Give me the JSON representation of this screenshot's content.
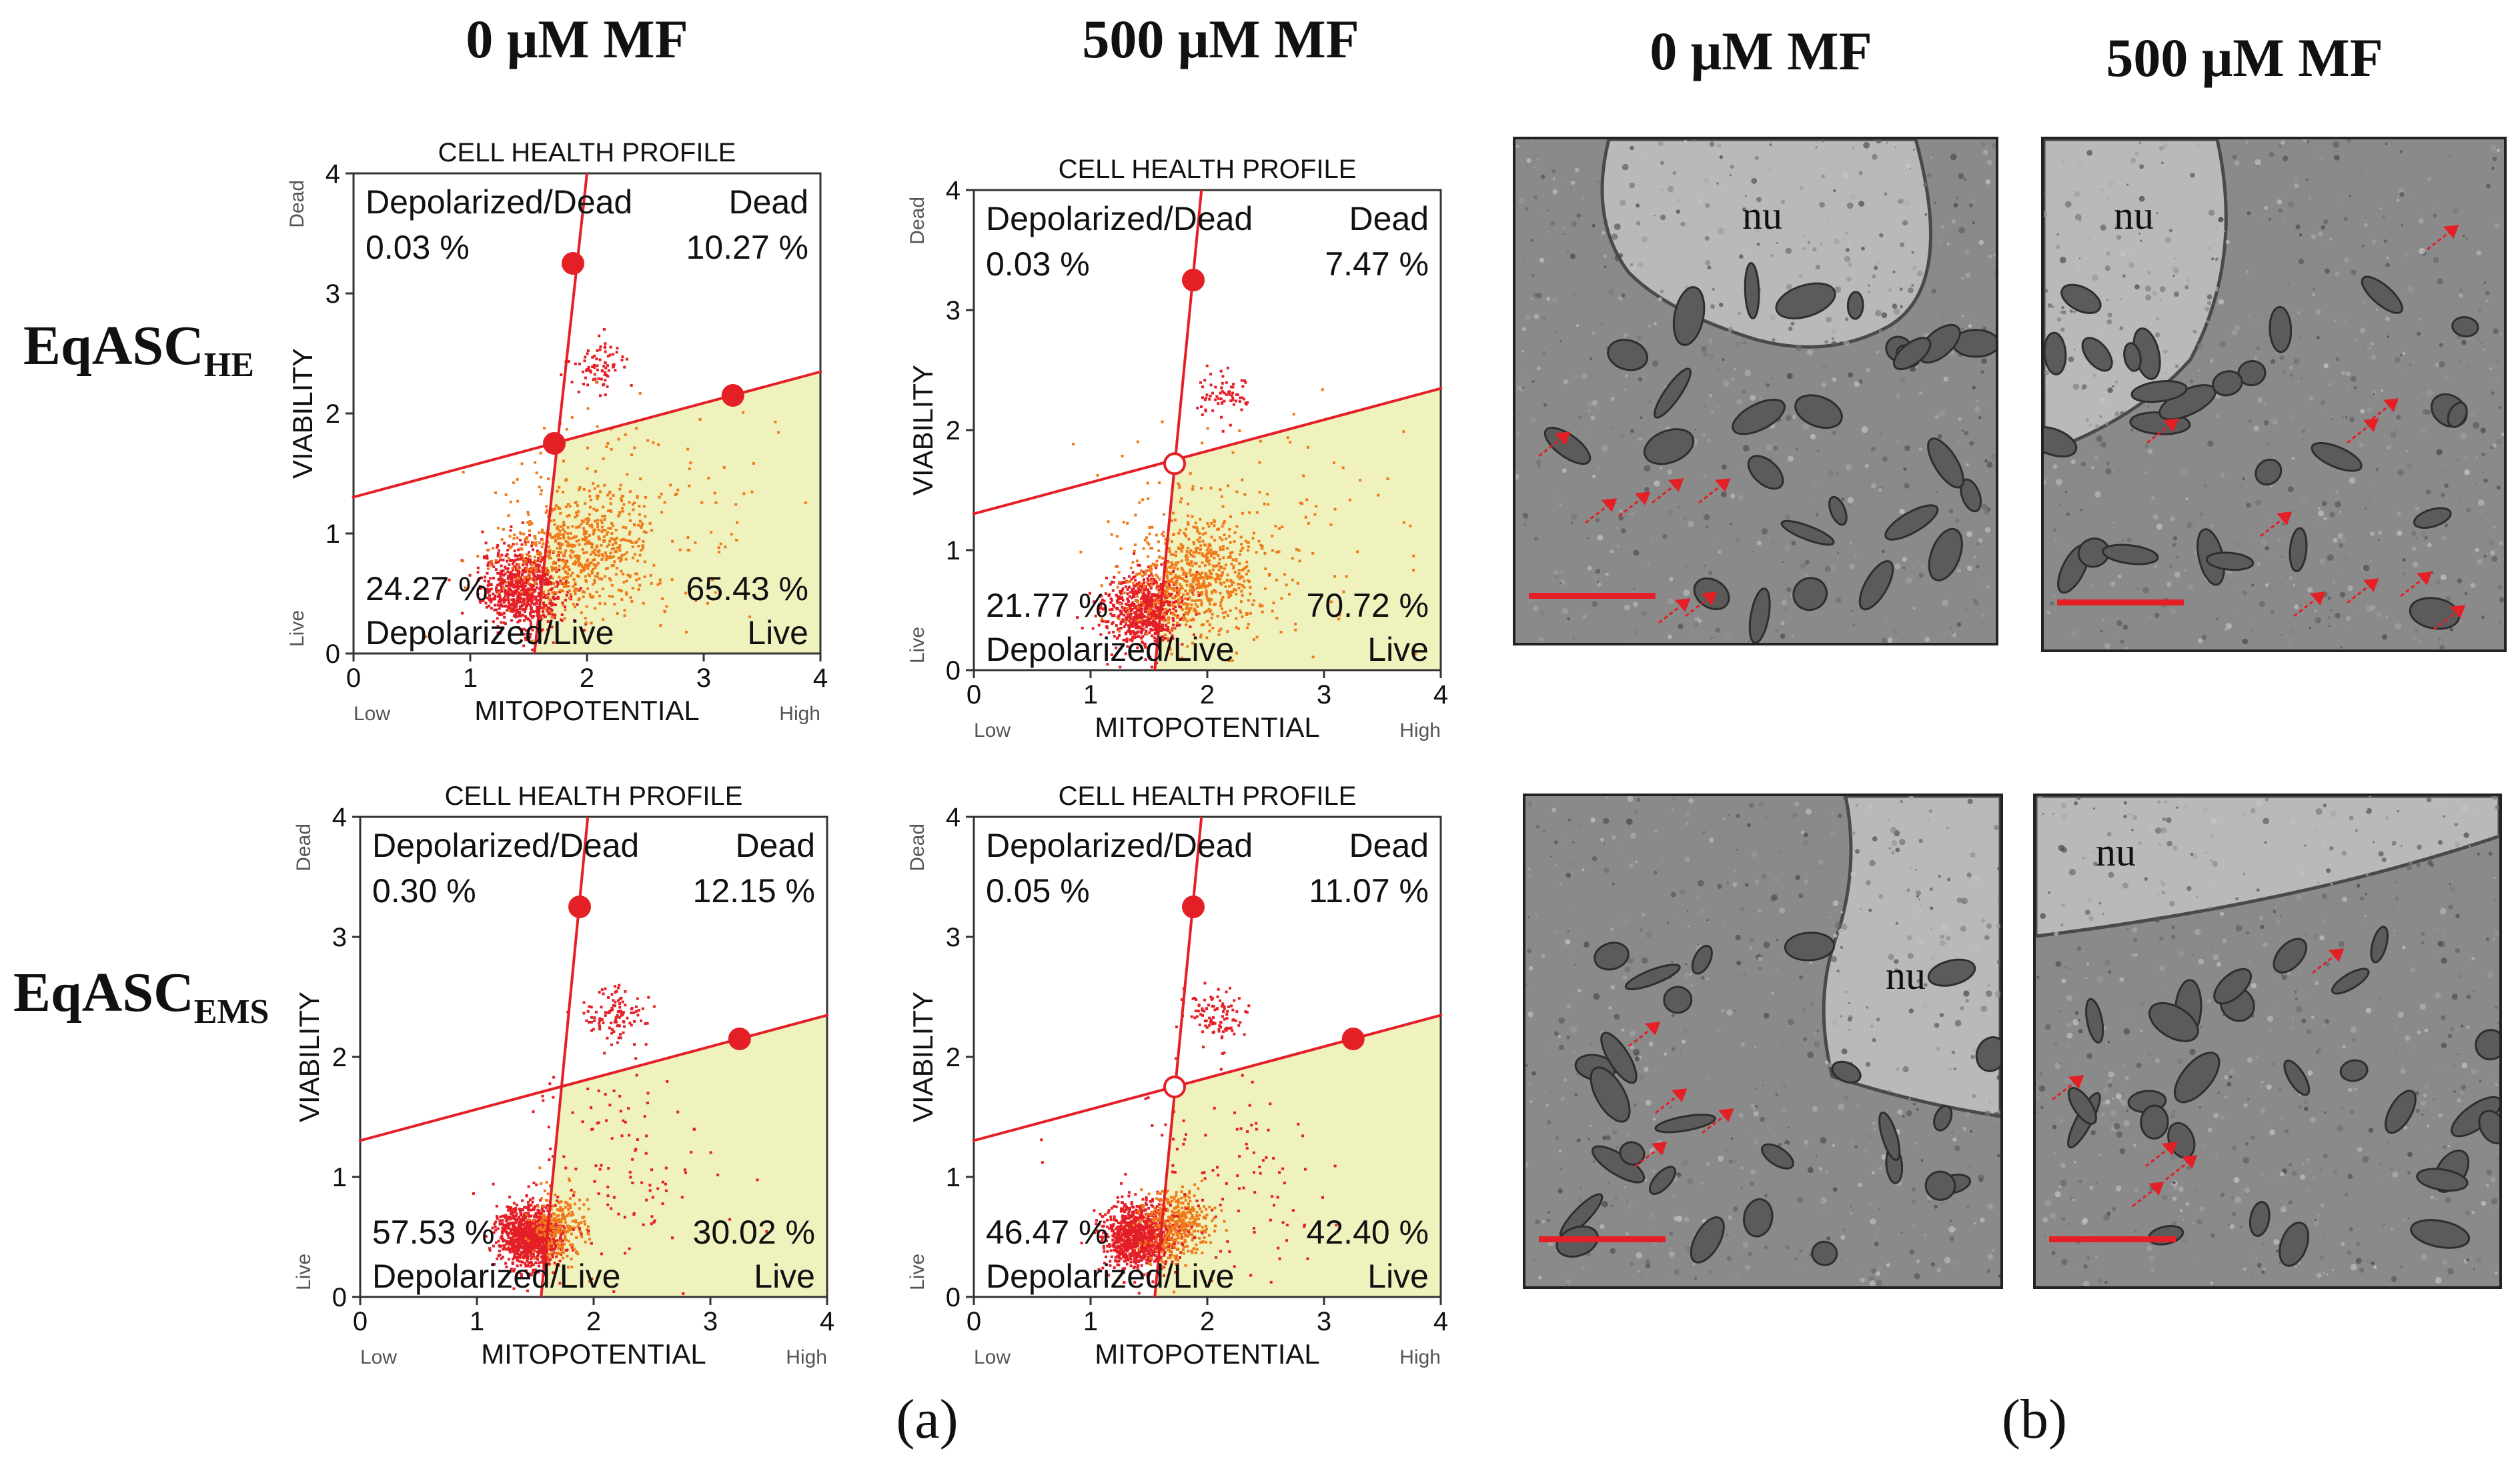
{
  "column_headers": {
    "a_left": "0 μM MF",
    "a_right": "500 μM MF",
    "b_left": "0 μM MF",
    "b_right": "500 μM MF"
  },
  "row_labels": [
    {
      "main": "EqASC",
      "sub": "HE"
    },
    {
      "main": "EqASC",
      "sub": "EMS"
    }
  ],
  "panel_labels": {
    "a": "(a)",
    "b": "(b)"
  },
  "colors": {
    "red": "#e41f26",
    "orange": "#ef7a1a",
    "live_fill": "#f0f2be",
    "frame": "#222222"
  },
  "chart_data": [
    {
      "type": "scatter",
      "id": "HE-0",
      "title": "CELL HEALTH PROFILE",
      "xlabel": "MITOPOTENTIAL",
      "ylabel": "VIABILITY",
      "x_low_label": "Low",
      "x_high_label": "High",
      "y_top_label": "Dead",
      "y_bottom_label": "Live",
      "xlim": [
        0,
        4
      ],
      "ylim": [
        0,
        4
      ],
      "x_ticks": [
        "0",
        "1",
        "2",
        "3",
        "4"
      ],
      "y_ticks": [
        "0",
        "1",
        "2",
        "3",
        "4"
      ],
      "gate": {
        "vertical_line": {
          "bottom_x": 1.55,
          "top_x": 2.0
        },
        "horizontal_line": {
          "left_y": 1.3,
          "right_y": 2.35
        },
        "handles": [
          {
            "x": 1.88,
            "y": 3.25,
            "open": false
          },
          {
            "x": 3.25,
            "y": 2.15,
            "open": false
          },
          {
            "x": 1.72,
            "y": 1.75,
            "open": false
          }
        ]
      },
      "quadrants": {
        "dep_dead": {
          "label": "Depolarized/Dead",
          "value": "0.03 %"
        },
        "dead": {
          "label": "Dead",
          "value": "10.27 %"
        },
        "dep_live": {
          "label": "Depolarized/Live",
          "value": "24.27 %"
        },
        "live": {
          "label": "Live",
          "value": "65.43 %"
        }
      },
      "clusters": [
        {
          "cx": 1.45,
          "cy": 0.55,
          "sx": 0.18,
          "sy": 0.17,
          "n": 750,
          "color": "red"
        },
        {
          "cx": 1.95,
          "cy": 0.85,
          "sx": 0.32,
          "sy": 0.25,
          "n": 600,
          "color": "orange"
        },
        {
          "cx": 2.1,
          "cy": 2.4,
          "sx": 0.12,
          "sy": 0.1,
          "n": 80,
          "color": "red"
        },
        {
          "cx": 2.4,
          "cy": 1.2,
          "sx": 0.6,
          "sy": 0.45,
          "n": 140,
          "color": "orange"
        }
      ]
    },
    {
      "type": "scatter",
      "id": "HE-500",
      "title": "CELL HEALTH PROFILE",
      "xlabel": "MITOPOTENTIAL",
      "ylabel": "VIABILITY",
      "x_low_label": "Low",
      "x_high_label": "High",
      "y_top_label": "Dead",
      "y_bottom_label": "Live",
      "xlim": [
        0,
        4
      ],
      "ylim": [
        0,
        4
      ],
      "x_ticks": [
        "0",
        "1",
        "2",
        "3",
        "4"
      ],
      "y_ticks": [
        "0",
        "1",
        "2",
        "3",
        "4"
      ],
      "gate": {
        "vertical_line": {
          "bottom_x": 1.55,
          "top_x": 1.95
        },
        "horizontal_line": {
          "left_y": 1.3,
          "right_y": 2.35
        },
        "handles": [
          {
            "x": 1.88,
            "y": 3.25,
            "open": false
          },
          {
            "x": 1.72,
            "y": 1.72,
            "open": true
          }
        ]
      },
      "quadrants": {
        "dep_dead": {
          "label": "Depolarized/Dead",
          "value": "0.03 %"
        },
        "dead": {
          "label": "Dead",
          "value": "7.47 %"
        },
        "dep_live": {
          "label": "Depolarized/Live",
          "value": "21.77 %"
        },
        "live": {
          "label": "Live",
          "value": "70.72 %"
        }
      },
      "clusters": [
        {
          "cx": 1.45,
          "cy": 0.5,
          "sx": 0.17,
          "sy": 0.15,
          "n": 700,
          "color": "red"
        },
        {
          "cx": 1.9,
          "cy": 0.75,
          "sx": 0.3,
          "sy": 0.25,
          "n": 650,
          "color": "orange"
        },
        {
          "cx": 2.1,
          "cy": 2.3,
          "sx": 0.12,
          "sy": 0.1,
          "n": 70,
          "color": "red"
        },
        {
          "cx": 2.4,
          "cy": 1.2,
          "sx": 0.6,
          "sy": 0.45,
          "n": 130,
          "color": "orange"
        }
      ]
    },
    {
      "type": "scatter",
      "id": "EMS-0",
      "title": "CELL HEALTH PROFILE",
      "xlabel": "MITOPOTENTIAL",
      "ylabel": "VIABILITY",
      "x_low_label": "Low",
      "x_high_label": "High",
      "y_top_label": "Dead",
      "y_bottom_label": "Live",
      "xlim": [
        0,
        4
      ],
      "ylim": [
        0,
        4
      ],
      "x_ticks": [
        "0",
        "1",
        "2",
        "3",
        "4"
      ],
      "y_ticks": [
        "0",
        "1",
        "2",
        "3",
        "4"
      ],
      "gate": {
        "vertical_line": {
          "bottom_x": 1.55,
          "top_x": 1.95
        },
        "horizontal_line": {
          "left_y": 1.3,
          "right_y": 2.35
        },
        "handles": [
          {
            "x": 1.88,
            "y": 3.25,
            "open": false
          },
          {
            "x": 3.25,
            "y": 2.15,
            "open": false
          }
        ]
      },
      "quadrants": {
        "dep_dead": {
          "label": "Depolarized/Dead",
          "value": "0.30 %"
        },
        "dead": {
          "label": "Dead",
          "value": "12.15 %"
        },
        "dep_live": {
          "label": "Depolarized/Live",
          "value": "57.53 %"
        },
        "live": {
          "label": "Live",
          "value": "30.02 %"
        }
      },
      "clusters": [
        {
          "cx": 1.45,
          "cy": 0.5,
          "sx": 0.13,
          "sy": 0.13,
          "n": 1000,
          "color": "red"
        },
        {
          "cx": 1.7,
          "cy": 0.6,
          "sx": 0.12,
          "sy": 0.15,
          "n": 220,
          "color": "orange"
        },
        {
          "cx": 2.2,
          "cy": 2.35,
          "sx": 0.14,
          "sy": 0.12,
          "n": 110,
          "color": "red"
        },
        {
          "cx": 2.2,
          "cy": 1.0,
          "sx": 0.45,
          "sy": 0.5,
          "n": 120,
          "color": "red"
        }
      ]
    },
    {
      "type": "scatter",
      "id": "EMS-500",
      "title": "CELL HEALTH PROFILE",
      "xlabel": "MITOPOTENTIAL",
      "ylabel": "VIABILITY",
      "x_low_label": "Low",
      "x_high_label": "High",
      "y_top_label": "Dead",
      "y_bottom_label": "Live",
      "xlim": [
        0,
        4
      ],
      "ylim": [
        0,
        4
      ],
      "x_ticks": [
        "0",
        "1",
        "2",
        "3",
        "4"
      ],
      "y_ticks": [
        "0",
        "1",
        "2",
        "3",
        "4"
      ],
      "gate": {
        "vertical_line": {
          "bottom_x": 1.55,
          "top_x": 1.95
        },
        "horizontal_line": {
          "left_y": 1.3,
          "right_y": 2.35
        },
        "handles": [
          {
            "x": 1.88,
            "y": 3.25,
            "open": false
          },
          {
            "x": 1.72,
            "y": 1.75,
            "open": true
          },
          {
            "x": 3.25,
            "y": 2.15,
            "open": false
          }
        ]
      },
      "quadrants": {
        "dep_dead": {
          "label": "Depolarized/Dead",
          "value": "0.05 %"
        },
        "dead": {
          "label": "Dead",
          "value": "11.07 %"
        },
        "dep_live": {
          "label": "Depolarized/Live",
          "value": "46.47 %"
        },
        "live": {
          "label": "Live",
          "value": "42.40 %"
        }
      },
      "clusters": [
        {
          "cx": 1.4,
          "cy": 0.5,
          "sx": 0.15,
          "sy": 0.14,
          "n": 950,
          "color": "red"
        },
        {
          "cx": 1.75,
          "cy": 0.6,
          "sx": 0.15,
          "sy": 0.15,
          "n": 350,
          "color": "orange"
        },
        {
          "cx": 2.1,
          "cy": 2.35,
          "sx": 0.14,
          "sy": 0.12,
          "n": 100,
          "color": "red"
        },
        {
          "cx": 2.2,
          "cy": 1.0,
          "sx": 0.45,
          "sy": 0.45,
          "n": 110,
          "color": "red"
        }
      ]
    }
  ],
  "tem_images": [
    {
      "id": "HE-0",
      "nucleus_label": "nu",
      "arrows": 7
    },
    {
      "id": "HE-500",
      "nucleus_label": "nu",
      "arrows": 9
    },
    {
      "id": "EMS-0",
      "nucleus_label": "nu",
      "arrows": 4
    },
    {
      "id": "EMS-500",
      "nucleus_label": "nu",
      "arrows": 5
    }
  ]
}
